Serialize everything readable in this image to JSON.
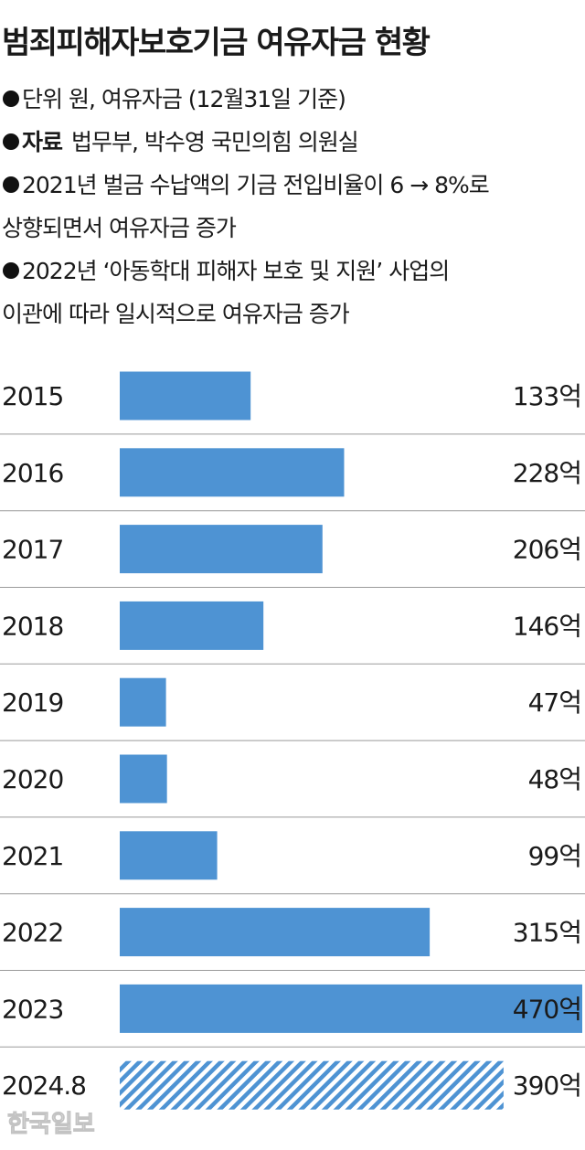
{
  "chart_data": {
    "type": "bar",
    "title": "범죄피해자보호기금 여유자금 현황",
    "notes": [
      {
        "lines": [
          "단위 원, 여유자금 (12월31일 기준)"
        ]
      },
      {
        "label": "자료",
        "lines": [
          "법무부, 박수영 국민의힘 의원실"
        ]
      },
      {
        "lines": [
          "2021년 벌금 수납액의 기금 전입비율이 6 → 8%로",
          "상향되면서 여유자금 증가"
        ]
      },
      {
        "lines": [
          "2022년 ‘아동학대 피해자 보호 및 지원’ 사업의",
          "이관에 따라 일시적으로 여유자금 증가"
        ]
      }
    ],
    "categories": [
      "2015",
      "2016",
      "2017",
      "2018",
      "2019",
      "2020",
      "2021",
      "2022",
      "2023",
      "2024.8"
    ],
    "values": [
      133,
      228,
      206,
      146,
      47,
      48,
      99,
      315,
      470,
      390
    ],
    "value_labels": [
      "133억",
      "228억",
      "206억",
      "146억",
      "47억",
      "48억",
      "99억",
      "315억",
      "470억",
      "390억"
    ],
    "hatched": [
      false,
      false,
      false,
      false,
      false,
      false,
      false,
      false,
      false,
      true
    ],
    "color": "#4e93d3",
    "watermark": "한국일보"
  }
}
